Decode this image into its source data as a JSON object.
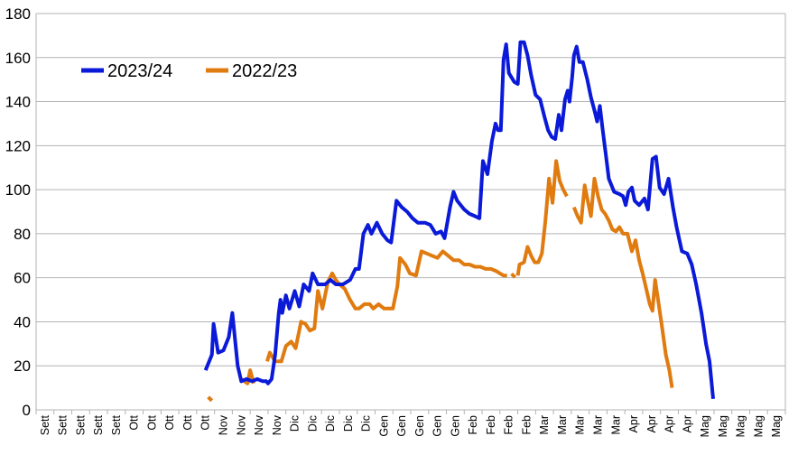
{
  "chart_data": {
    "type": "line",
    "title": "",
    "xlabel": "",
    "ylabel": "",
    "ylim": [
      0,
      180
    ],
    "yticks": [
      0,
      20,
      40,
      60,
      80,
      100,
      120,
      140,
      160,
      180
    ],
    "grid": "horizontal",
    "legend_position": "top-left",
    "x_categories": [
      "Sett",
      "Sett",
      "Sett",
      "Sett",
      "Sett",
      "Ott",
      "Ott",
      "Ott",
      "Ott",
      "Ott",
      "Nov",
      "Nov",
      "Nov",
      "Nov",
      "Dic",
      "Dic",
      "Dic",
      "Dic",
      "Dic",
      "Gen",
      "Gen",
      "Gen",
      "Gen",
      "Gen",
      "Feb",
      "Feb",
      "Feb",
      "Feb",
      "Mar",
      "Mar",
      "Mar",
      "Mar",
      "Mar",
      "Apr",
      "Apr",
      "Apr",
      "Apr",
      "Mag",
      "Mag",
      "Mag",
      "Mag",
      "Mag"
    ],
    "series": [
      {
        "name": "2023/24",
        "color": "#0a1ad8",
        "points": [
          [
            9.5,
            18
          ],
          [
            9.85,
            25
          ],
          [
            9.95,
            39
          ],
          [
            10.2,
            26
          ],
          [
            10.5,
            27
          ],
          [
            10.8,
            33
          ],
          [
            11.0,
            44
          ],
          [
            11.3,
            20
          ],
          [
            11.5,
            13
          ],
          [
            11.8,
            14
          ],
          [
            12.1,
            13
          ],
          [
            12.4,
            14
          ],
          [
            12.7,
            13
          ],
          [
            12.9,
            13
          ],
          [
            13.0,
            12
          ],
          [
            13.2,
            14
          ],
          [
            13.4,
            25
          ],
          [
            13.6,
            44
          ],
          [
            13.7,
            50
          ],
          [
            13.8,
            44
          ],
          [
            14.0,
            52
          ],
          [
            14.2,
            46
          ],
          [
            14.5,
            54
          ],
          [
            14.75,
            47
          ],
          [
            15.0,
            57
          ],
          [
            15.3,
            54
          ],
          [
            15.5,
            62
          ],
          [
            15.8,
            57
          ],
          [
            16.2,
            57
          ],
          [
            16.5,
            59
          ],
          [
            16.8,
            57
          ],
          [
            17.2,
            57
          ],
          [
            17.6,
            59
          ],
          [
            17.9,
            64
          ],
          [
            18.1,
            64
          ],
          [
            18.35,
            80
          ],
          [
            18.6,
            84
          ],
          [
            18.8,
            80
          ],
          [
            19.1,
            85
          ],
          [
            19.4,
            80
          ],
          [
            19.7,
            77
          ],
          [
            19.9,
            76
          ],
          [
            20.2,
            95
          ],
          [
            20.5,
            92
          ],
          [
            20.8,
            90
          ],
          [
            21.1,
            87
          ],
          [
            21.4,
            85
          ],
          [
            21.8,
            85
          ],
          [
            22.1,
            84
          ],
          [
            22.4,
            80
          ],
          [
            22.7,
            81
          ],
          [
            22.9,
            78
          ],
          [
            23.2,
            92
          ],
          [
            23.4,
            99
          ],
          [
            23.6,
            95
          ],
          [
            24.0,
            91
          ],
          [
            24.3,
            89
          ],
          [
            24.6,
            88
          ],
          [
            24.85,
            87
          ],
          [
            25.05,
            113
          ],
          [
            25.3,
            107
          ],
          [
            25.55,
            122
          ],
          [
            25.75,
            130
          ],
          [
            25.9,
            127
          ],
          [
            26.05,
            127
          ],
          [
            26.2,
            159
          ],
          [
            26.35,
            166
          ],
          [
            26.5,
            153
          ],
          [
            26.8,
            149
          ],
          [
            27.0,
            148
          ],
          [
            27.15,
            167
          ],
          [
            27.35,
            167
          ],
          [
            27.55,
            161
          ],
          [
            27.75,
            152
          ],
          [
            28.0,
            143
          ],
          [
            28.25,
            141
          ],
          [
            28.5,
            133
          ],
          [
            28.7,
            127
          ],
          [
            28.9,
            124
          ],
          [
            29.1,
            123
          ],
          [
            29.3,
            134
          ],
          [
            29.45,
            127
          ],
          [
            29.65,
            141
          ],
          [
            29.8,
            145
          ],
          [
            29.9,
            140
          ],
          [
            30.05,
            151
          ],
          [
            30.15,
            161
          ],
          [
            30.3,
            165
          ],
          [
            30.45,
            158
          ],
          [
            30.65,
            158
          ],
          [
            30.9,
            150
          ],
          [
            31.1,
            142
          ],
          [
            31.3,
            136
          ],
          [
            31.45,
            131
          ],
          [
            31.6,
            138
          ],
          [
            31.75,
            128
          ],
          [
            31.95,
            115
          ],
          [
            32.1,
            105
          ],
          [
            32.4,
            99
          ],
          [
            32.7,
            98
          ],
          [
            32.9,
            97
          ],
          [
            33.05,
            93
          ],
          [
            33.2,
            99
          ],
          [
            33.4,
            101
          ],
          [
            33.55,
            95
          ],
          [
            33.8,
            93
          ],
          [
            34.1,
            96
          ],
          [
            34.3,
            91
          ],
          [
            34.55,
            114
          ],
          [
            34.75,
            115
          ],
          [
            34.95,
            101
          ],
          [
            35.2,
            98
          ],
          [
            35.45,
            105
          ],
          [
            35.7,
            92
          ],
          [
            35.9,
            83
          ],
          [
            36.2,
            72
          ],
          [
            36.5,
            71
          ],
          [
            36.75,
            66
          ],
          [
            37.0,
            57
          ],
          [
            37.3,
            44
          ],
          [
            37.55,
            30
          ],
          [
            37.75,
            22
          ],
          [
            37.95,
            5
          ]
        ]
      },
      {
        "name": "2022/23",
        "color": "#e07b10",
        "points": [
          [
            9.75,
            5
          ],
          [
            null,
            null
          ],
          [
            11.5,
            14
          ],
          [
            11.85,
            12
          ],
          [
            12.0,
            18
          ],
          [
            12.2,
            12
          ],
          [
            null,
            null
          ],
          [
            12.95,
            22
          ],
          [
            13.1,
            26
          ],
          [
            13.4,
            22
          ],
          [
            13.75,
            22
          ],
          [
            14.0,
            29
          ],
          [
            14.3,
            31
          ],
          [
            14.55,
            28
          ],
          [
            14.85,
            40
          ],
          [
            15.1,
            39
          ],
          [
            15.35,
            36
          ],
          [
            15.6,
            37
          ],
          [
            15.8,
            54
          ],
          [
            16.05,
            46
          ],
          [
            16.35,
            58
          ],
          [
            16.6,
            62
          ],
          [
            16.8,
            59
          ],
          [
            17.0,
            57
          ],
          [
            17.3,
            55
          ],
          [
            17.6,
            50
          ],
          [
            17.9,
            46
          ],
          [
            18.1,
            46
          ],
          [
            18.4,
            48
          ],
          [
            18.7,
            48
          ],
          [
            18.9,
            46
          ],
          [
            19.2,
            48
          ],
          [
            19.5,
            46
          ],
          [
            19.8,
            46
          ],
          [
            20.0,
            46
          ],
          [
            20.25,
            56
          ],
          [
            20.4,
            69
          ],
          [
            20.7,
            66
          ],
          [
            20.95,
            62
          ],
          [
            21.3,
            61
          ],
          [
            21.6,
            72
          ],
          [
            21.9,
            71
          ],
          [
            22.2,
            70
          ],
          [
            22.5,
            69
          ],
          [
            22.8,
            72
          ],
          [
            23.1,
            70
          ],
          [
            23.4,
            68
          ],
          [
            23.7,
            68
          ],
          [
            24.0,
            66
          ],
          [
            24.3,
            66
          ],
          [
            24.6,
            65
          ],
          [
            24.9,
            65
          ],
          [
            25.2,
            64
          ],
          [
            25.5,
            64
          ],
          [
            25.8,
            63
          ],
          [
            26.0,
            62
          ],
          [
            26.2,
            61
          ],
          [
            26.4,
            61
          ],
          [
            null,
            null
          ],
          [
            26.75,
            61
          ],
          [
            null,
            null
          ],
          [
            27.0,
            61
          ],
          [
            27.1,
            66
          ],
          [
            27.35,
            67
          ],
          [
            27.55,
            74
          ],
          [
            27.75,
            70
          ],
          [
            27.95,
            67
          ],
          [
            28.15,
            67
          ],
          [
            28.35,
            71
          ],
          [
            28.55,
            86
          ],
          [
            28.75,
            105
          ],
          [
            28.95,
            94
          ],
          [
            29.15,
            113
          ],
          [
            29.35,
            104
          ],
          [
            29.55,
            100
          ],
          [
            29.75,
            97
          ],
          [
            null,
            null
          ],
          [
            30.15,
            92
          ],
          [
            30.35,
            88
          ],
          [
            30.55,
            85
          ],
          [
            30.75,
            102
          ],
          [
            30.9,
            96
          ],
          [
            31.1,
            88
          ],
          [
            31.3,
            105
          ],
          [
            31.5,
            97
          ],
          [
            31.7,
            91
          ],
          [
            31.9,
            89
          ],
          [
            32.1,
            86
          ],
          [
            32.3,
            82
          ],
          [
            32.5,
            81
          ],
          [
            32.7,
            83
          ],
          [
            32.9,
            80
          ],
          [
            33.15,
            80
          ],
          [
            33.4,
            72
          ],
          [
            33.6,
            77
          ],
          [
            33.8,
            68
          ],
          [
            34.0,
            62
          ],
          [
            34.2,
            55
          ],
          [
            34.4,
            48
          ],
          [
            34.55,
            45
          ],
          [
            34.7,
            59
          ],
          [
            34.9,
            48
          ],
          [
            35.1,
            37
          ],
          [
            35.3,
            25
          ],
          [
            35.5,
            18
          ],
          [
            35.65,
            10
          ]
        ]
      }
    ]
  }
}
